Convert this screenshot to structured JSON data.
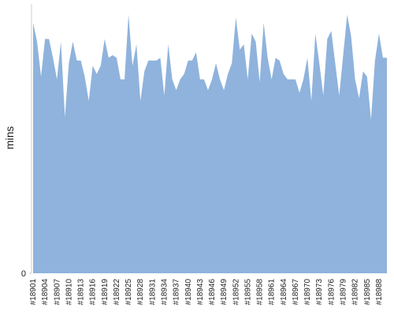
{
  "chart_data": {
    "type": "area",
    "y_label": "mins",
    "color": "#8fb3dc",
    "categories": [
      "#18901",
      null,
      null,
      "#18904",
      null,
      null,
      "#18907",
      null,
      null,
      "#18910",
      null,
      null,
      "#18913",
      null,
      null,
      "#18916",
      null,
      null,
      "#18919",
      null,
      null,
      "#18922",
      null,
      null,
      "#18925",
      null,
      null,
      "#18928",
      null,
      null,
      "#18931",
      null,
      null,
      "#18934",
      null,
      null,
      "#18937",
      null,
      null,
      "#18940",
      null,
      null,
      "#18943",
      null,
      null,
      "#18946",
      null,
      null,
      "#18949",
      null,
      null,
      "#18952",
      null,
      null,
      "#18955",
      null,
      null,
      "#18958",
      null,
      null,
      "#18961",
      null,
      null,
      "#18964",
      null,
      null,
      "#18967",
      null,
      null,
      "#18970",
      null,
      null,
      "#18973",
      null,
      null,
      "#18976",
      null,
      null,
      "#18979",
      null,
      null,
      "#18982",
      null,
      null,
      "#18985",
      null,
      null,
      "#18988",
      null,
      null
    ],
    "values": [
      93,
      86,
      73,
      87,
      87,
      80,
      72,
      86,
      58,
      78,
      86,
      79,
      79,
      73,
      64,
      77,
      74,
      77,
      87,
      80,
      81,
      80,
      72,
      72,
      96,
      77,
      85,
      64,
      75,
      79,
      79,
      79,
      80,
      66,
      85,
      72,
      68,
      72,
      74,
      79,
      79,
      82,
      72,
      72,
      68,
      72,
      78,
      72,
      68,
      74,
      78,
      95,
      83,
      85,
      72,
      89,
      86,
      71,
      93,
      80,
      72,
      80,
      79,
      74,
      72,
      72,
      72,
      67,
      72,
      80,
      64,
      89,
      78,
      66,
      87,
      90,
      78,
      66,
      81,
      96,
      88,
      72,
      65,
      75,
      73,
      57,
      79,
      89,
      80,
      80
    ],
    "ylim": [
      0,
      100
    ],
    "yticks": [
      0
    ]
  }
}
